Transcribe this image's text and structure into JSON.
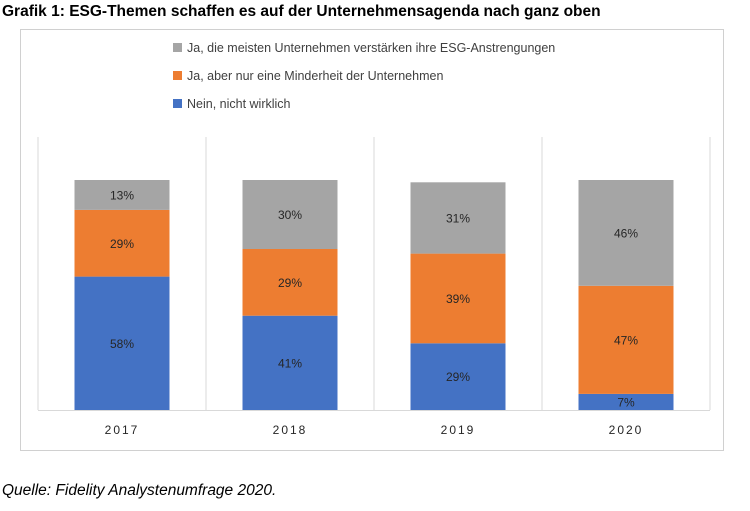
{
  "title": "Grafik 1: ESG-Themen schaffen es auf der Unternehmensagenda nach ganz oben",
  "source": "Quelle: Fidelity Analystenumfrage 2020.",
  "colors": {
    "grey": "#a5a5a5",
    "orange": "#ed7d31",
    "blue": "#4472c4"
  },
  "chart_data": {
    "type": "bar",
    "stacked": true,
    "categories": [
      "2017",
      "2018",
      "2019",
      "2020"
    ],
    "series": [
      {
        "name": "Nein, nicht wirklich",
        "values": [
          58,
          41,
          29,
          7
        ],
        "labels": [
          "58%",
          "41%",
          "29%",
          "7%"
        ],
        "color": "#4472c4"
      },
      {
        "name": "Ja, aber nur eine Minderheit der Unternehmen",
        "values": [
          29,
          29,
          39,
          47
        ],
        "labels": [
          "29%",
          "29%",
          "39%",
          "47%"
        ],
        "color": "#ed7d31"
      },
      {
        "name": "Ja, die meisten Unternehmen verstärken ihre ESG-Anstrengungen",
        "values": [
          13,
          30,
          31,
          46
        ],
        "labels": [
          "13%",
          "30%",
          "31%",
          "46%"
        ],
        "color": "#a5a5a5"
      }
    ],
    "legend": [
      {
        "name": "Ja, die meisten Unternehmen verstärken ihre ESG-Anstrengungen",
        "color": "#a5a5a5"
      },
      {
        "name": "Ja, aber nur eine Minderheit der Unternehmen",
        "color": "#ed7d31"
      },
      {
        "name": "Nein, nicht wirklich",
        "color": "#4472c4"
      }
    ],
    "legend_position": "top",
    "grid": false,
    "data_labels": true
  }
}
